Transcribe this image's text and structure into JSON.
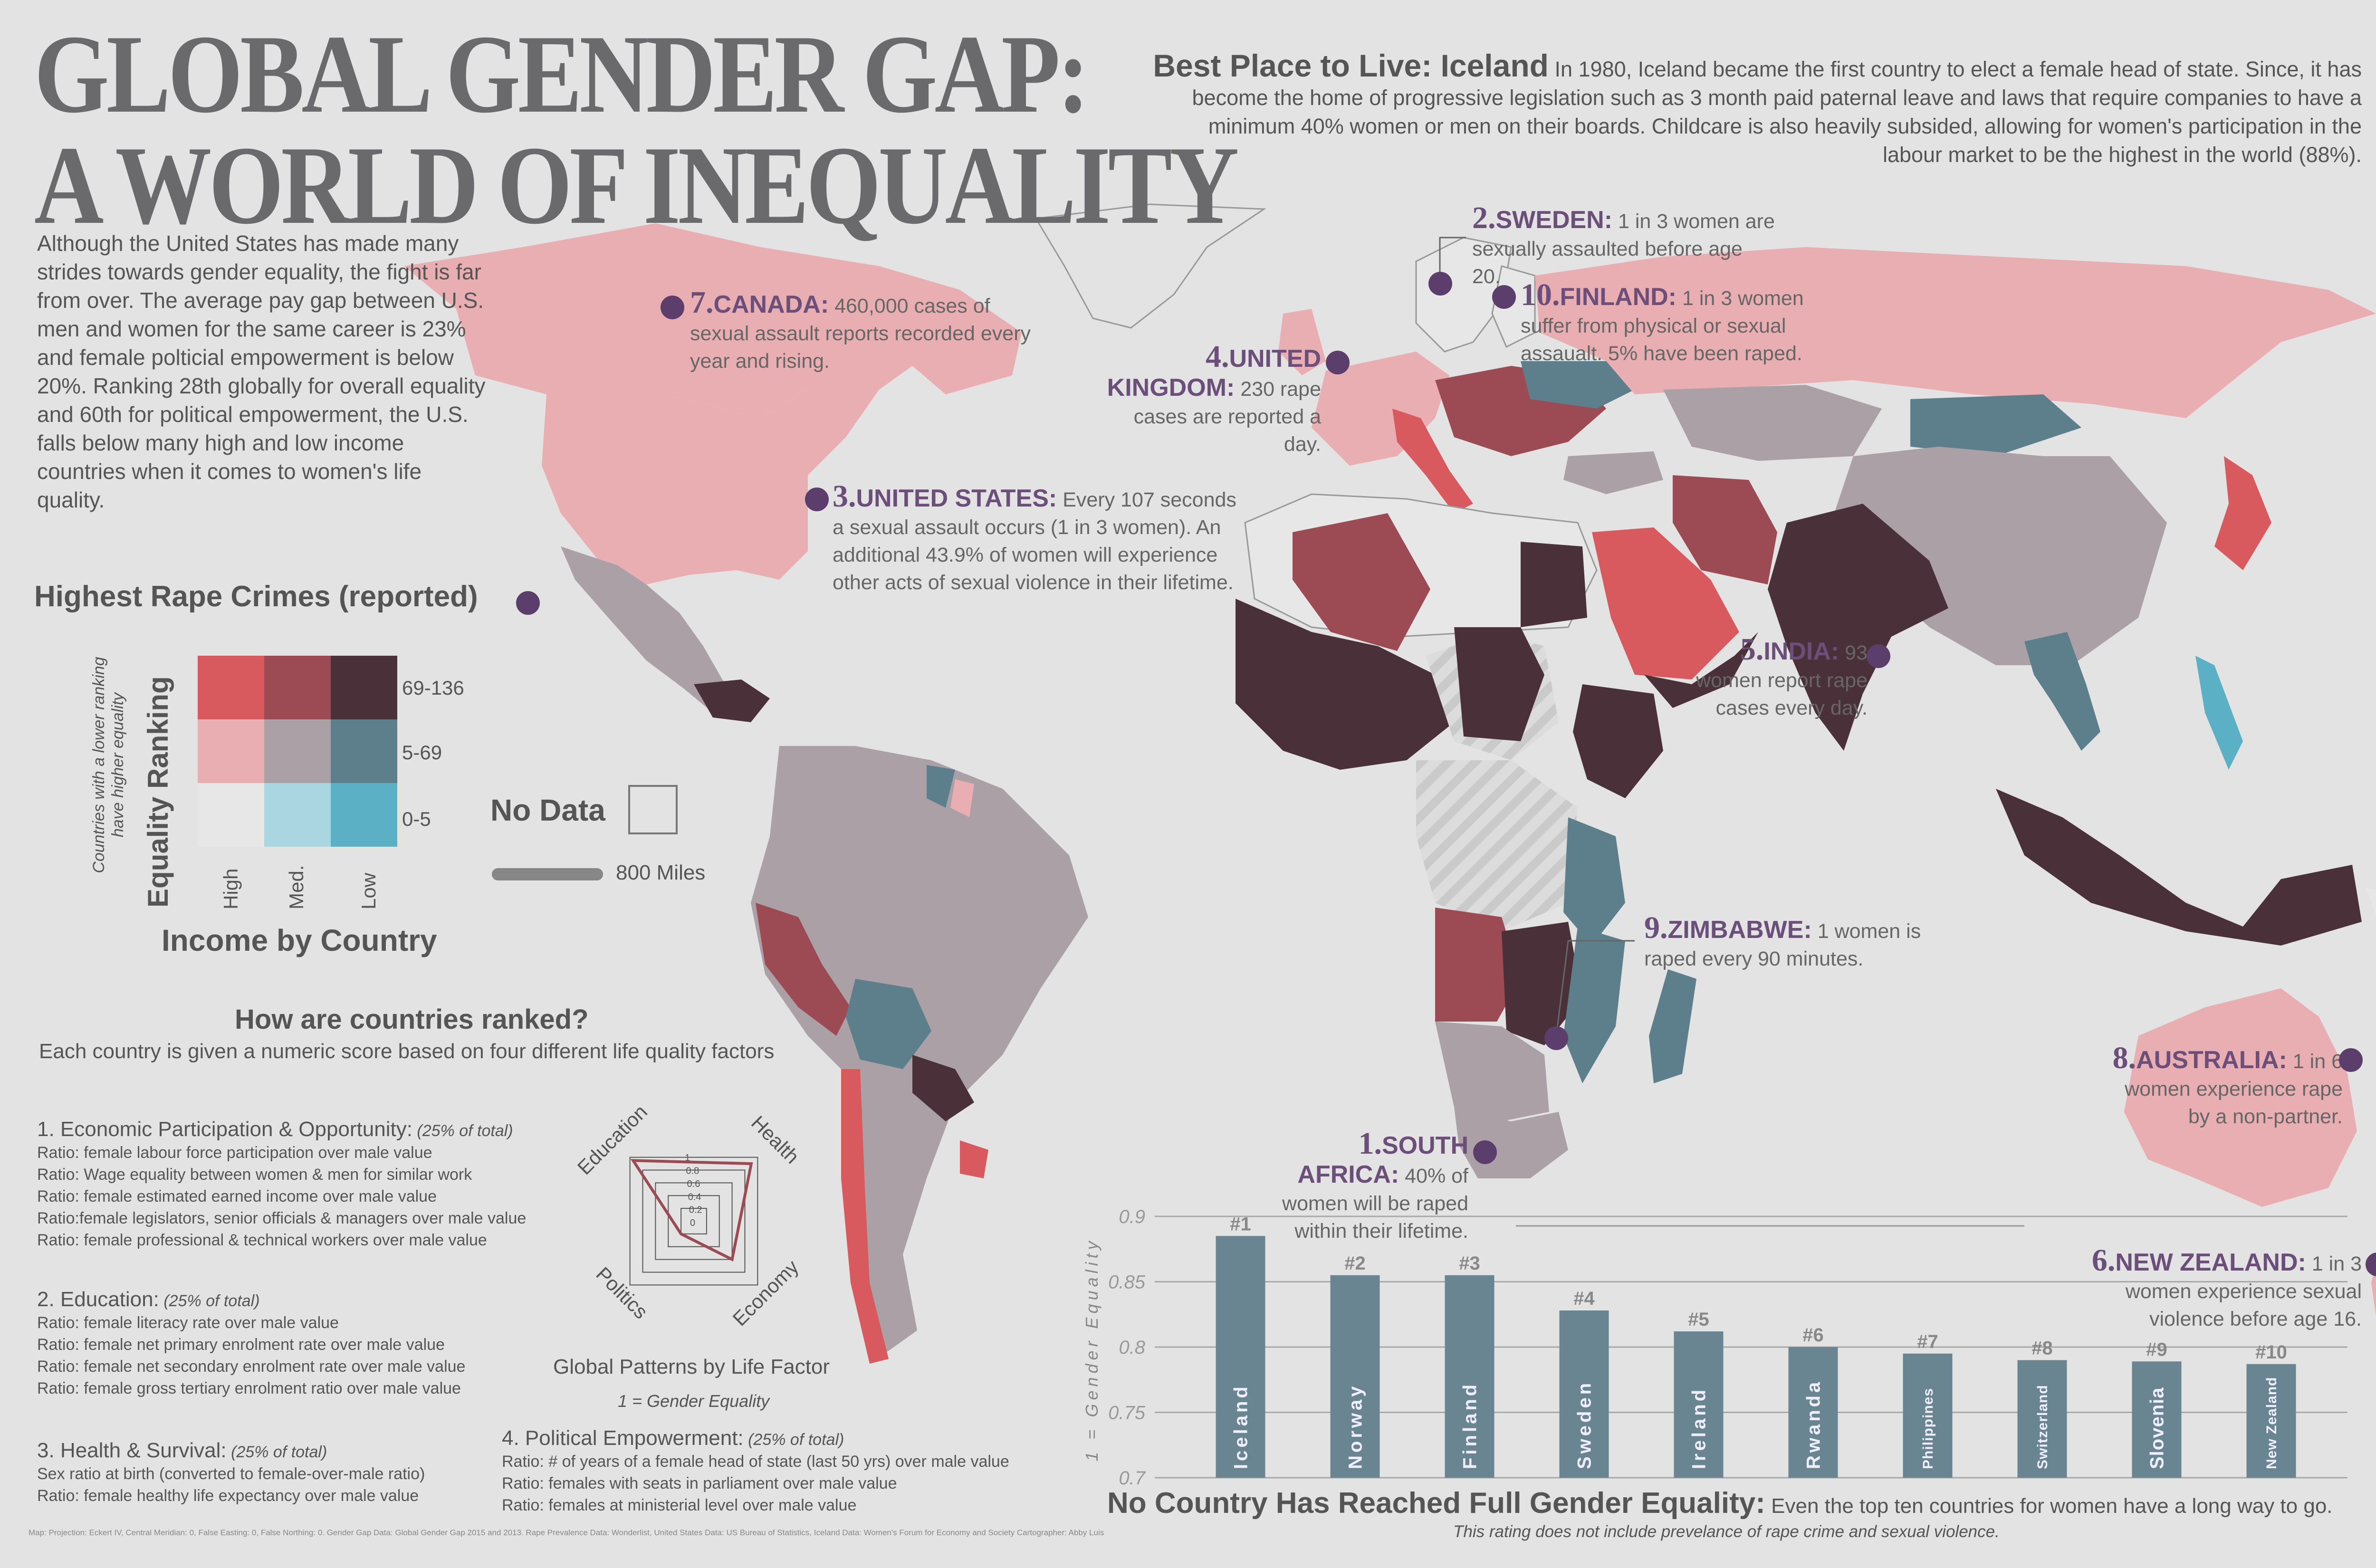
{
  "title": {
    "line1": "GLOBAL GENDER GAP:",
    "line2": "A WORLD OF INEQUALITY"
  },
  "us_intro": "Although the United States has made many strides towards gender equality, the fight is far from over.   The average pay gap between U.S. men and women for the same career is 23% and female polticial empowerment is below 20%.  Ranking 28th globally for overall  equality and 60th for political empowerment, the U.S. falls below many high and low income countries when it  comes to women's life quality.",
  "iceland": {
    "heading": "Best Place to Live: Iceland",
    "text": "In 1980, Iceland became the first country to elect a female head of state.  Since, it has become the  home of  progressive legislation such as 3 month paid paternal leave and laws that require companies to have a minimum 40% women or men on their boards.  Childcare is also heavily subsided, allowing for women's participation in the labour market to be the highest in the world (88%)."
  },
  "callouts": [
    {
      "id": "canada",
      "num": "7.",
      "name": "CANADA:",
      "text": "460,000 cases of sexual assault reports recorded every year and rising."
    },
    {
      "id": "sweden",
      "num": "2.",
      "name": "SWEDEN:",
      "text": "1 in 3 women are sexually assaulted before age 20."
    },
    {
      "id": "finland",
      "num": "10.",
      "name": "FINLAND:",
      "text": "1 in 3 women suffer from physical or sexual assaualt.  5% have been raped."
    },
    {
      "id": "uk",
      "num": "4.",
      "name": "UNITED KINGDOM:",
      "text": "230 rape cases are reported a day."
    },
    {
      "id": "us",
      "num": "3.",
      "name": "UNITED STATES:",
      "text": "Every 107 seconds a sexual assault occurs (1 in 3 women). An additional 43.9% of women will experience other acts of sexual violence in their lifetime."
    },
    {
      "id": "india",
      "num": "5.",
      "name": "INDIA:",
      "text": "93 women report rape cases every day."
    },
    {
      "id": "zimbabwe",
      "num": "9.",
      "name": "ZIMBABWE:",
      "text": "1 women is raped every 90 minutes."
    },
    {
      "id": "australia",
      "num": "8.",
      "name": "AUSTRALIA:",
      "text": "1 in 6 women experience rape by a non-partner."
    },
    {
      "id": "southafrica",
      "num": "1.",
      "name": "SOUTH AFRICA:",
      "text": "40% of women will be raped within their lifetime."
    },
    {
      "id": "newzealand",
      "num": "6.",
      "name": "NEW ZEALAND:",
      "text": "1 in 3 women experience sexual violence before age 16."
    }
  ],
  "legend": {
    "title": "Highest Rape Crimes (reported)",
    "rows": [
      "69-136",
      "5-69",
      "0-5"
    ],
    "cols": [
      "High",
      "Med.",
      "Low"
    ],
    "y_label": "Equality Ranking",
    "y_note": "Countries with a lower ranking have higher equality",
    "x_label": "Income by Country",
    "colors": [
      [
        "#d85a5e",
        "#9c4a53",
        "#4a3038"
      ],
      [
        "#e9aeb2",
        "#aaa0a6",
        "#5d7f8c"
      ],
      [
        "#e7e7e8",
        "#a9d6e0",
        "#5cb0c6"
      ]
    ],
    "no_data": "No Data",
    "scale": "800 Miles"
  },
  "how": {
    "title": "How are countries ranked?",
    "subtitle": "Each country is given a numeric score based on four different life quality factors",
    "factors": [
      {
        "heading": "1. Economic Participation & Opportunity:",
        "weight": "(25% of total)",
        "lines": [
          "Ratio: female labour force participation over male value",
          "Ratio: Wage equality between women & men for similar work",
          "Ratio: female estimated earned income over male value",
          "Ratio:female legislators, senior officials & managers over male value",
          "Ratio: female professional & technical workers over male value"
        ]
      },
      {
        "heading": "2. Education:",
        "weight": "(25% of total)",
        "lines": [
          "Ratio: female literacy rate over male value",
          "Ratio: female net primary enrolment rate over male value",
          "Ratio: female net secondary enrolment rate over male value",
          "Ratio: female gross tertiary enrolment ratio over male value"
        ]
      },
      {
        "heading": "3. Health & Survival:",
        "weight": "(25% of total)",
        "lines": [
          "Sex ratio at birth (converted to female-over-male ratio)",
          "Ratio: female healthy life expectancy over male value"
        ]
      },
      {
        "heading": "4. Political Empowerment:",
        "weight": "(25% of total)",
        "lines": [
          "Ratio: # of years of a female head of state (last 50 yrs) over male value",
          "Ratio: females with seats in parliament over male value",
          "Ratio: females at ministerial level over male value"
        ]
      }
    ]
  },
  "radar": {
    "axes": [
      "Health",
      "Economy",
      "Politics",
      "Education"
    ],
    "ticks": [
      "1",
      "0.8",
      "0.6",
      "0.4",
      "0.2",
      "0"
    ],
    "values": [
      0.9,
      0.6,
      0.2,
      0.95
    ],
    "caption": "Global Patterns by Life Factor",
    "note": "1 = Gender Equality"
  },
  "chart_data": {
    "type": "bar",
    "ylabel": "1 = Gender Equality",
    "ylim": [
      0.7,
      0.9
    ],
    "yticks": [
      "0.9",
      "0.85",
      "0.8",
      "0.75",
      "0.7"
    ],
    "categories": [
      "Iceland",
      "Norway",
      "Finland",
      "Sweden",
      "Ireland",
      "Rwanda",
      "Philippines",
      "Switzerland",
      "Slovenia",
      "New Zealand"
    ],
    "ranks": [
      "#1",
      "#2",
      "#3",
      "#4",
      "#5",
      "#6",
      "#7",
      "#8",
      "#9",
      "#10"
    ],
    "values": [
      0.885,
      0.855,
      0.855,
      0.828,
      0.812,
      0.8,
      0.795,
      0.79,
      0.789,
      0.787
    ],
    "color": "#6a8592"
  },
  "chart_caption": {
    "heading": "No Country Has Reached Full Gender Equality:",
    "text": "Even the top ten countries for women have a long way to go.",
    "note": "This rating does not include prevelance of rape crime and sexual violence."
  },
  "sources": "Map:  Projection: Eckert IV, Central Meridian: 0, False Easting: 0, False Northing: 0.    Gender Gap Data: Global Gender Gap 2015 and 2013.    Rape Prevalence Data: Wonderlist,  United States Data: US Bureau of Statistics, Iceland Data:  Women's Forum for Economy and Society Cartographer: Abby Luis"
}
